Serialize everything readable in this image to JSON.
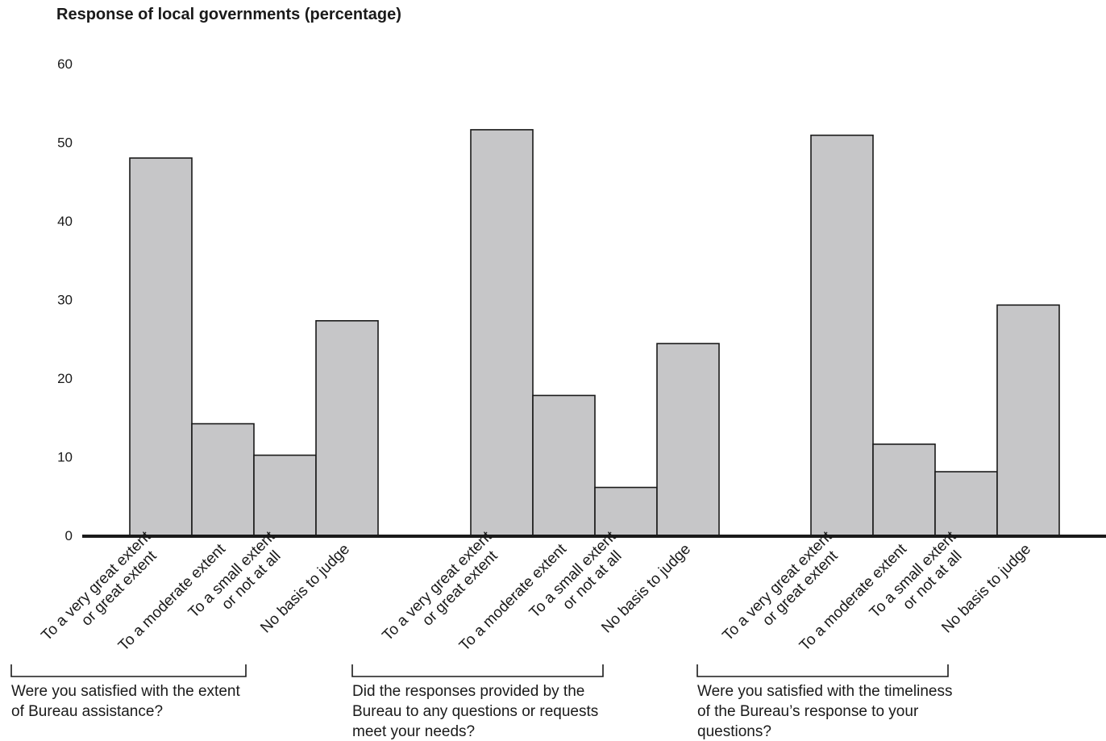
{
  "chart_data": {
    "type": "bar",
    "title": "Response of local governments (percentage)",
    "ylim": [
      0,
      60
    ],
    "yticks": [
      0,
      10,
      20,
      30,
      40,
      50,
      60
    ],
    "grid": false,
    "bar_color": "#c6c6c8",
    "categories": [
      [
        "To a very great extent",
        "or great extent"
      ],
      [
        "To a moderate extent"
      ],
      [
        "To a small extent",
        "or not at all"
      ],
      [
        "No basis to judge"
      ]
    ],
    "groups": [
      {
        "question": [
          "Were you satisfied with the extent",
          "of Bureau assistance?"
        ],
        "values": [
          48,
          14.2,
          10.2,
          27.3
        ]
      },
      {
        "question": [
          "Did the responses provided by the",
          "Bureau to any questions or requests",
          "meet your needs?"
        ],
        "values": [
          51.6,
          17.8,
          6.1,
          24.4
        ]
      },
      {
        "question": [
          "Were you satisfied with the timeliness",
          "of the Bureau’s response to your",
          "questions?"
        ],
        "values": [
          50.9,
          11.6,
          8.1,
          29.3
        ]
      }
    ]
  }
}
